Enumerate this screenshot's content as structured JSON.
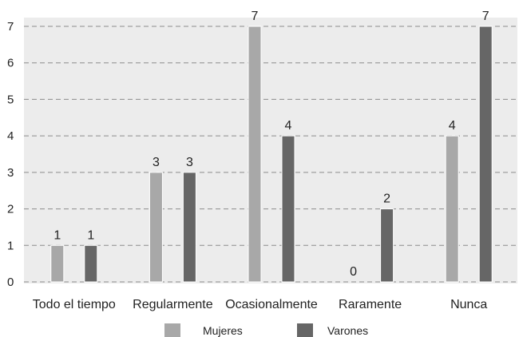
{
  "chart_data": {
    "type": "bar",
    "title": "",
    "xlabel": "",
    "ylabel": "",
    "categories": [
      "Todo el tiempo",
      "Regularmente",
      "Ocasionalmente",
      "Raramente",
      "Nunca"
    ],
    "series": [
      {
        "name": "Mujeres",
        "values": [
          1,
          3,
          7,
          0,
          4
        ],
        "color": "#a8a8a8"
      },
      {
        "name": "Varones",
        "values": [
          1,
          3,
          4,
          2,
          7
        ],
        "color": "#666666"
      }
    ],
    "ylim": [
      0,
      7
    ],
    "yticks": [
      0,
      1,
      2,
      3,
      4,
      5,
      6,
      7
    ],
    "grid": true,
    "legend_position": "bottom",
    "plot_background": "#ececec"
  }
}
